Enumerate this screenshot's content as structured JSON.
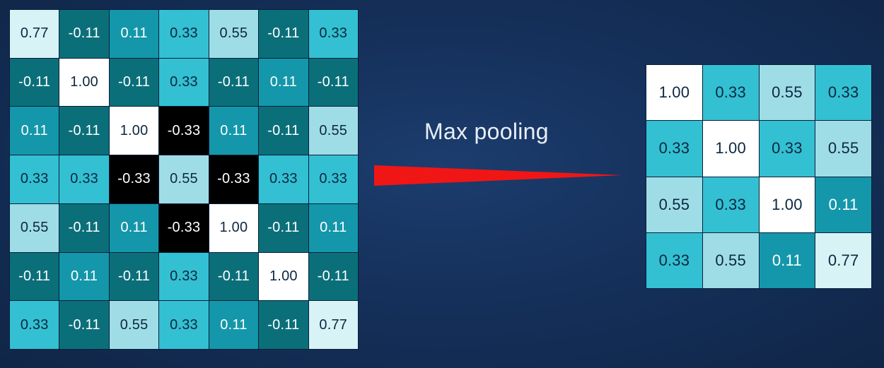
{
  "label": "Max pooling",
  "colors": {
    "background": "#15305b",
    "arrow": "#f01616",
    "cell_neg_0_11": "#0b6f7a",
    "cell_0_11": "#1497aa",
    "cell_0_33": "#33c0d2",
    "cell_0_55": "#9fdde6",
    "cell_0_77": "#d7f3f6",
    "cell_1_00": "#ffffff",
    "cell_neg_0_33": "#000000"
  },
  "input_matrix": [
    [
      "0.77",
      "-0.11",
      "0.11",
      "0.33",
      "0.55",
      "-0.11",
      "0.33"
    ],
    [
      "-0.11",
      "1.00",
      "-0.11",
      "0.33",
      "-0.11",
      "0.11",
      "-0.11"
    ],
    [
      "0.11",
      "-0.11",
      "1.00",
      "-0.33",
      "0.11",
      "-0.11",
      "0.55"
    ],
    [
      "0.33",
      "0.33",
      "-0.33",
      "0.55",
      "-0.33",
      "0.33",
      "0.33"
    ],
    [
      "0.55",
      "-0.11",
      "0.11",
      "-0.33",
      "1.00",
      "-0.11",
      "0.11"
    ],
    [
      "-0.11",
      "0.11",
      "-0.11",
      "0.33",
      "-0.11",
      "1.00",
      "-0.11"
    ],
    [
      "0.33",
      "-0.11",
      "0.55",
      "0.33",
      "0.11",
      "-0.11",
      "0.77"
    ]
  ],
  "output_matrix": [
    [
      "1.00",
      "0.33",
      "0.55",
      "0.33"
    ],
    [
      "0.33",
      "1.00",
      "0.33",
      "0.55"
    ],
    [
      "0.55",
      "0.33",
      "1.00",
      "0.11"
    ],
    [
      "0.33",
      "0.55",
      "0.11",
      "0.77"
    ]
  ]
}
